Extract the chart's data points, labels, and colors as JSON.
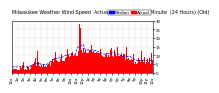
{
  "title": "Milwaukee Weather Wind Speed  Actual and Median  by Minute  (24 Hours) (Old)",
  "background_color": "#ffffff",
  "bar_color": "#ff0000",
  "median_color": "#0000ff",
  "n_points": 1440,
  "seed": 42,
  "ylim": [
    0,
    30
  ],
  "legend_actual_color": "#ff0000",
  "legend_median_color": "#0000ff",
  "title_fontsize": 3.5,
  "tick_fontsize": 2.8,
  "legend_fontsize": 3.0
}
